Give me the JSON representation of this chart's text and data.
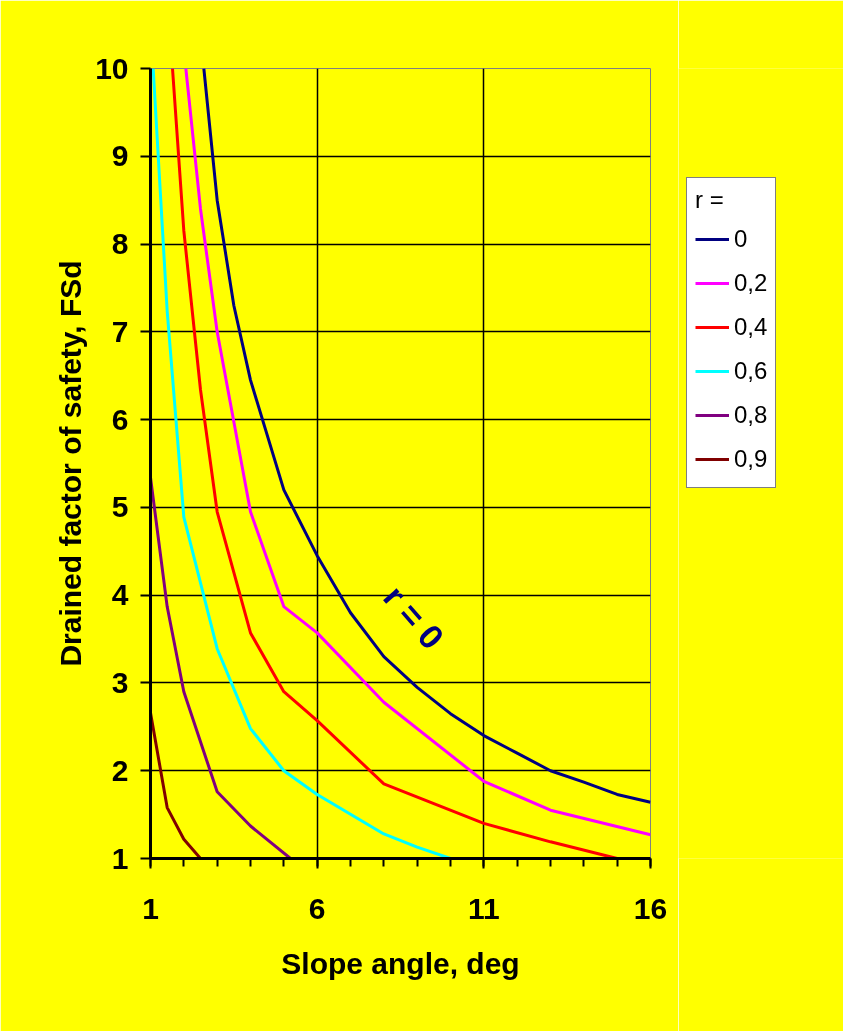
{
  "chart_data": {
    "type": "line",
    "xlabel": "Slope angle, deg",
    "ylabel": "Drained factor of safety, FSd",
    "legend_title": "r =",
    "xlim": [
      1,
      16
    ],
    "xticks": [
      1,
      6,
      11,
      16
    ],
    "ylim": [
      1,
      10
    ],
    "yticks": [
      1,
      2,
      3,
      4,
      5,
      6,
      7,
      8,
      9,
      10
    ],
    "grid": true,
    "legend": "right",
    "marker": "none",
    "line_style": "solid",
    "annotations": [
      "r = 0"
    ],
    "series": [
      {
        "name": "0",
        "color": "#000080",
        "x": [
          2.6,
          3,
          3.5,
          4,
          5,
          6,
          7,
          8,
          9,
          10,
          11,
          12,
          13,
          14,
          15,
          16
        ],
        "values": [
          10,
          8.5,
          7.3,
          6.45,
          5.2,
          4.45,
          3.8,
          3.3,
          2.95,
          2.65,
          2.4,
          2.2,
          2.0,
          1.87,
          1.73,
          1.64
        ]
      },
      {
        "name": "0,2",
        "color": "#ff00ff",
        "x": [
          2.06,
          2.5,
          3,
          4,
          5,
          6,
          8,
          11,
          13,
          16
        ],
        "values": [
          10,
          8.4,
          7.0,
          4.95,
          3.87,
          3.57,
          2.78,
          1.88,
          1.55,
          1.27
        ]
      },
      {
        "name": "0,4",
        "color": "#ff0000",
        "x": [
          1.66,
          2,
          2.5,
          3,
          4,
          5,
          6,
          8,
          11,
          13,
          15
        ],
        "values": [
          10,
          8.15,
          6.34,
          4.95,
          3.57,
          2.9,
          2.57,
          1.85,
          1.4,
          1.19,
          1.0
        ]
      },
      {
        "name": "0,6",
        "color": "#00ffff",
        "x": [
          1.08,
          1.5,
          2,
          3,
          4,
          5,
          6,
          8,
          9,
          10
        ],
        "values": [
          10,
          7.24,
          4.89,
          3.39,
          2.48,
          2.0,
          1.73,
          1.28,
          1.13,
          1.0
        ]
      },
      {
        "name": "0,8",
        "color": "#800080",
        "x": [
          1,
          1.5,
          2,
          3,
          4,
          5.2
        ],
        "values": [
          5.34,
          3.87,
          2.9,
          1.76,
          1.37,
          1.0
        ]
      },
      {
        "name": "0,9",
        "color": "#800000",
        "x": [
          1,
          1.5,
          2,
          2.5
        ],
        "values": [
          2.66,
          1.58,
          1.22,
          1.0
        ]
      }
    ]
  }
}
